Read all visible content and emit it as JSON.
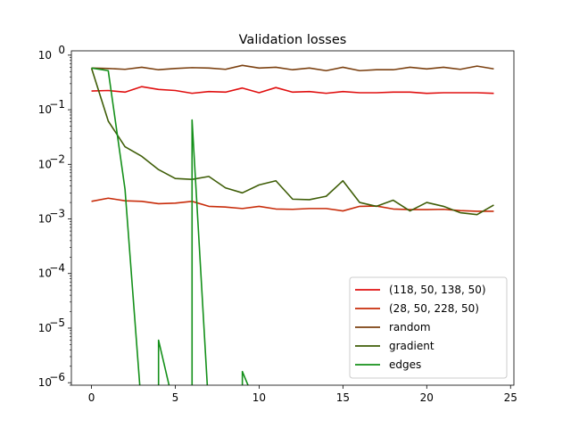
{
  "chart_data": {
    "type": "line",
    "title": "Validation losses",
    "xlabel": "",
    "ylabel": "",
    "yscale": "log",
    "xlim": [
      -1.2,
      25.2
    ],
    "ylim": [
      9e-07,
      1.2
    ],
    "xticks": [
      0,
      5,
      10,
      15,
      20,
      25
    ],
    "yticks": [
      1e-06,
      1e-05,
      0.0001,
      0.001,
      0.01,
      0.1,
      1
    ],
    "ytick_labels": [
      "10",
      "10",
      "10",
      "10",
      "10",
      "10",
      "10"
    ],
    "ytick_exponents": [
      "−6",
      "−5",
      "−4",
      "−3",
      "−2",
      "−1",
      "0"
    ],
    "grid": false,
    "legend_position": "lower-right",
    "x": [
      0,
      1,
      2,
      3,
      4,
      5,
      6,
      7,
      8,
      9,
      10,
      11,
      12,
      13,
      14,
      15,
      16,
      17,
      18,
      19,
      20,
      21,
      22,
      23,
      24
    ],
    "series": [
      {
        "name": "(118, 50, 138, 50)",
        "color": "#e01010",
        "values": [
          0.22,
          0.225,
          0.21,
          0.265,
          0.235,
          0.225,
          0.2,
          0.215,
          0.21,
          0.25,
          0.205,
          0.255,
          0.21,
          0.215,
          0.2,
          0.215,
          0.205,
          0.205,
          0.21,
          0.21,
          0.2,
          0.205,
          0.205,
          0.205,
          0.2
        ]
      },
      {
        "name": "(28, 50, 228, 50)",
        "color": "#c82c0a",
        "values": [
          0.0021,
          0.0024,
          0.00215,
          0.0021,
          0.0019,
          0.00195,
          0.0021,
          0.0017,
          0.00165,
          0.00155,
          0.0017,
          0.00152,
          0.0015,
          0.00155,
          0.00155,
          0.0014,
          0.0017,
          0.00172,
          0.00152,
          0.00148,
          0.00148,
          0.0015,
          0.00142,
          0.00138,
          0.00138
        ]
      },
      {
        "name": "random",
        "color": "#7b4010",
        "values": [
          0.58,
          0.57,
          0.55,
          0.6,
          0.54,
          0.57,
          0.59,
          0.58,
          0.55,
          0.65,
          0.58,
          0.6,
          0.54,
          0.58,
          0.52,
          0.6,
          0.52,
          0.54,
          0.54,
          0.6,
          0.56,
          0.6,
          0.55,
          0.63,
          0.56
        ]
      },
      {
        "name": "gradient",
        "color": "#3f5e08",
        "values": [
          0.58,
          0.062,
          0.021,
          0.014,
          0.008,
          0.0055,
          0.0053,
          0.006,
          0.0037,
          0.003,
          0.0042,
          0.005,
          0.0023,
          0.00225,
          0.0026,
          0.005,
          0.002,
          0.0017,
          0.0022,
          0.0014,
          0.002,
          0.0017,
          0.0013,
          0.0012,
          0.0018
        ]
      },
      {
        "name": "edges",
        "color": "#14901a",
        "values": [
          0.58,
          0.52,
          0.0035,
          null,
          6e-06,
          null,
          0.065,
          null,
          null,
          1.6e-06,
          null,
          null,
          null,
          null,
          null,
          null,
          null,
          null,
          null,
          null,
          null,
          null,
          null,
          null,
          null
        ]
      }
    ]
  }
}
